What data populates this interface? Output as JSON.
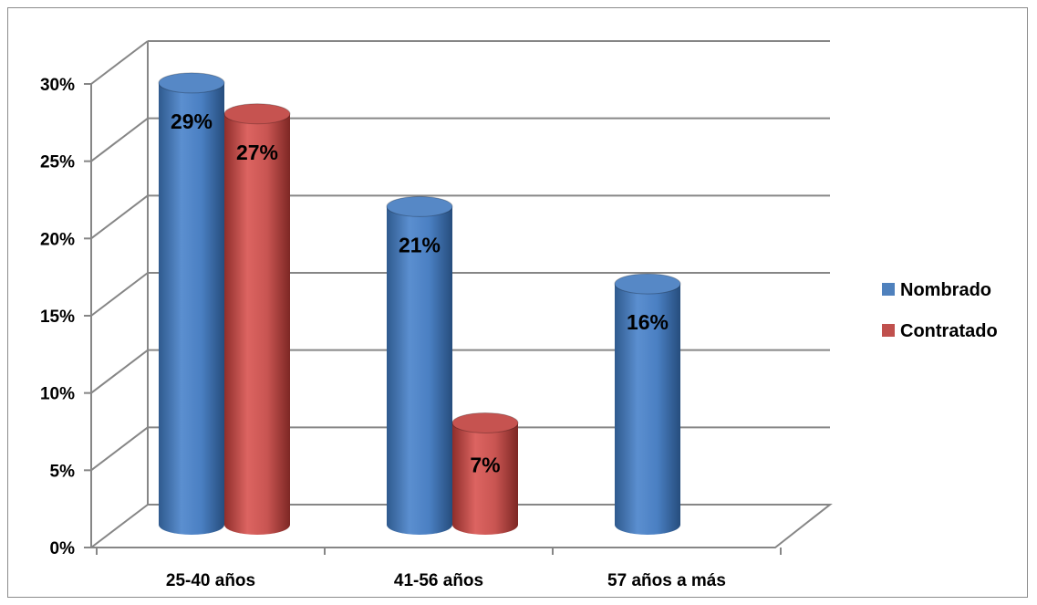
{
  "chart_data": {
    "type": "bar",
    "style": "3d-cylinder",
    "categories": [
      "25-40 años",
      "41-56 años",
      "57 años a más"
    ],
    "series": [
      {
        "name": "Nombrado",
        "values": [
          29,
          21,
          16
        ],
        "labels": [
          "29%",
          "21%",
          "16%"
        ],
        "color": "#4f81bd"
      },
      {
        "name": "Contratado",
        "values": [
          27,
          7,
          null
        ],
        "labels": [
          "27%",
          "7%",
          ""
        ],
        "color": "#c0504d"
      }
    ],
    "ylim": [
      0,
      30
    ],
    "yticks": [
      "0%",
      "5%",
      "10%",
      "15%",
      "20%",
      "25%",
      "30%"
    ],
    "grid": true,
    "legend_position": "right"
  }
}
